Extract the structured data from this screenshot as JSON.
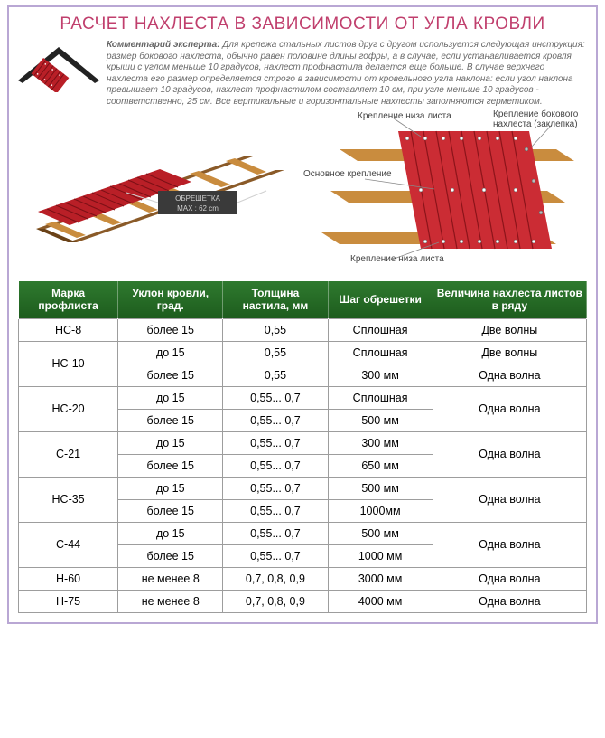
{
  "title": "РАСЧЕТ НАХЛЕСТА В ЗАВИСИМОСТИ ОТ УГЛА КРОВЛИ",
  "title_color": "#c03f6d",
  "comment_label": "Комментарий эксперта:",
  "comment_text": "Для крепежа стальных листов друг с другом используется следующая инструкция: размер бокового нахлеста, обычно равен половине длины гофры, а в случае, если устанавливается кровля крыши с углом меньше 10 градусов, нахлест профнастила делается еще больше. В случае верхнего нахлеста его размер определяется строго в зависимости от кровельного угла наклона: если угол наклона превышает 10 градусов, нахлест профнастилом составляет 10 см, при угле меньше 10 градусов - соответственно, 25 см. Все вертикальные и горизонтальные нахлесты заполняются герметиком.",
  "diagram_labels": {
    "obresh": "ОБРЕШЕТКА",
    "max": "MAX : 62 cm",
    "krep_niz": "Крепление низа листа",
    "krep_osn": "Основное крепление",
    "krep_bok": "Крепление бокового нахлеста (заклепка)",
    "krep_niz2": "Крепление низа листа"
  },
  "colors": {
    "roof_red": "#b91f27",
    "roof_red_light": "#d4373f",
    "wood": "#c98c3e",
    "wood_dark": "#8a5a28",
    "header_green": "#2f7a2f",
    "header_green_dark": "#1d5c1d",
    "border_gray": "#9d9d9d",
    "frame_purple": "#b9a7d4"
  },
  "table": {
    "headers": [
      "Марка профлиста",
      "Уклон кровли, град.",
      "Толщина настила, мм",
      "Шаг обрешетки",
      "Величина нахлеста листов в ряду"
    ],
    "rows": [
      {
        "mark": "НС-8",
        "span": 1,
        "sub": [
          {
            "slope": "более 15",
            "thick": "0,55",
            "step": "Сплошная",
            "overlap": "Две волны"
          }
        ]
      },
      {
        "mark": "НС-10",
        "span": 2,
        "sub": [
          {
            "slope": "до 15",
            "thick": "0,55",
            "step": "Сплошная",
            "overlap": "Две волны"
          },
          {
            "slope": "более 15",
            "thick": "0,55",
            "step": "300 мм",
            "overlap": "Одна волна"
          }
        ]
      },
      {
        "mark": "НС-20",
        "span": 2,
        "overlap": "Одна волна",
        "sub": [
          {
            "slope": "до 15",
            "thick": "0,55... 0,7",
            "step": "Сплошная"
          },
          {
            "slope": "более 15",
            "thick": "0,55... 0,7",
            "step": "500 мм"
          }
        ]
      },
      {
        "mark": "С-21",
        "span": 2,
        "overlap": "Одна волна",
        "sub": [
          {
            "slope": "до 15",
            "thick": "0,55... 0,7",
            "step": "300 мм"
          },
          {
            "slope": "более 15",
            "thick": "0,55... 0,7",
            "step": "650 мм"
          }
        ]
      },
      {
        "mark": "НС-35",
        "span": 2,
        "overlap": "Одна волна",
        "sub": [
          {
            "slope": "до 15",
            "thick": "0,55... 0,7",
            "step": "500 мм"
          },
          {
            "slope": "более 15",
            "thick": "0,55... 0,7",
            "step": "1000мм"
          }
        ]
      },
      {
        "mark": "С-44",
        "span": 2,
        "overlap": "Одна волна",
        "sub": [
          {
            "slope": "до 15",
            "thick": "0,55... 0,7",
            "step": "500 мм"
          },
          {
            "slope": "более 15",
            "thick": "0,55... 0,7",
            "step": "1000 мм"
          }
        ]
      },
      {
        "mark": "Н-60",
        "span": 1,
        "sub": [
          {
            "slope": "не менее 8",
            "thick": "0,7, 0,8, 0,9",
            "step": "3000 мм",
            "overlap": "Одна волна"
          }
        ]
      },
      {
        "mark": "Н-75",
        "span": 1,
        "sub": [
          {
            "slope": "не менее 8",
            "thick": "0,7, 0,8, 0,9",
            "step": "4000 мм",
            "overlap": "Одна волна"
          }
        ]
      }
    ]
  }
}
